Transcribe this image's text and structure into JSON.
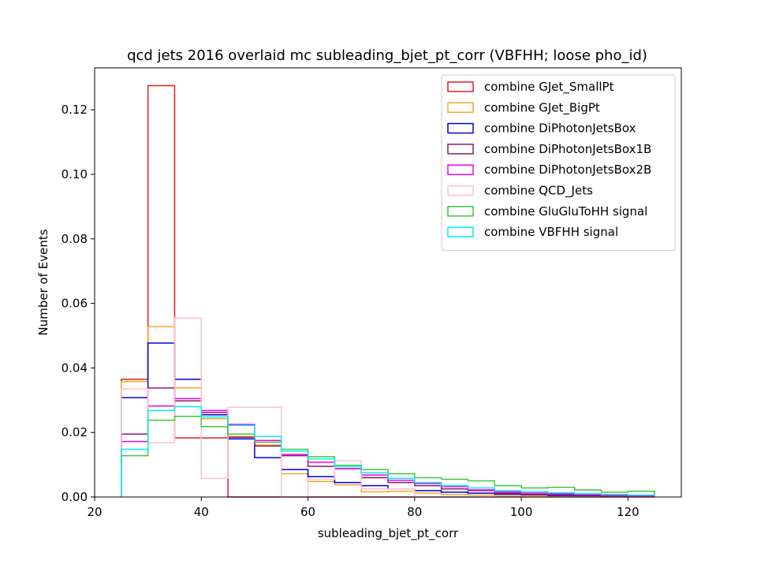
{
  "chart_data": {
    "type": "histogram-step",
    "title": "qcd jets 2016 overlaid mc subleading_bjet_pt_corr (VBFHH; loose pho_id)",
    "xlabel": "subleading_bjet_pt_corr",
    "ylabel": "Number of Events",
    "xlim": [
      20,
      130
    ],
    "ylim": [
      0,
      0.133
    ],
    "xticks": [
      "20",
      "40",
      "60",
      "80",
      "100",
      "120"
    ],
    "xtick_values": [
      20,
      40,
      60,
      80,
      100,
      120
    ],
    "yticks": [
      "0.00",
      "0.02",
      "0.04",
      "0.06",
      "0.08",
      "0.10",
      "0.12"
    ],
    "ytick_values": [
      0.0,
      0.02,
      0.04,
      0.06,
      0.08,
      0.1,
      0.12
    ],
    "grid": false,
    "legend_position": "top-right",
    "bin_edges": [
      25,
      30,
      35,
      40,
      45,
      50,
      55,
      60,
      65,
      70,
      75,
      80,
      85,
      90,
      95,
      100,
      105,
      110,
      115,
      120,
      125
    ],
    "series": [
      {
        "name": "combine GJet_SmallPt",
        "color": "#e41a1c",
        "values": [
          0.0365,
          0.1275,
          0.0183,
          0.0183,
          0.0,
          0.0,
          0.0,
          0.0,
          0.0,
          0.0,
          0.0,
          0.0,
          0.0,
          0.0,
          0.0,
          0.0,
          0.0,
          0.0,
          0.0,
          0.0
        ]
      },
      {
        "name": "combine GJet_BigPt",
        "color": "#f5a623",
        "values": [
          0.0358,
          0.0528,
          0.0338,
          0.0243,
          0.0188,
          0.0161,
          0.0072,
          0.0048,
          0.0038,
          0.0016,
          0.0018,
          0.0012,
          0.0008,
          0.0006,
          0.0004,
          0.0003,
          0.0003,
          0.0002,
          0.0002,
          0.0001
        ]
      },
      {
        "name": "combine DiPhotonJetsBox",
        "color": "#0000dd",
        "values": [
          0.0308,
          0.0477,
          0.0365,
          0.0255,
          0.018,
          0.0122,
          0.0085,
          0.0063,
          0.0045,
          0.0035,
          0.0025,
          0.002,
          0.0015,
          0.0012,
          0.0009,
          0.0007,
          0.0005,
          0.0004,
          0.0003,
          0.0002
        ]
      },
      {
        "name": "combine DiPhotonJetsBox1B",
        "color": "#8b1a6b",
        "values": [
          0.0195,
          0.0338,
          0.0298,
          0.0262,
          0.0185,
          0.0158,
          0.0128,
          0.0095,
          0.0088,
          0.006,
          0.0045,
          0.0035,
          0.0025,
          0.002,
          0.0012,
          0.0008,
          0.0007,
          0.0005,
          0.0004,
          0.0003
        ]
      },
      {
        "name": "combine DiPhotonJetsBox2B",
        "color": "#ee00ee",
        "values": [
          0.0172,
          0.0282,
          0.0305,
          0.0268,
          0.0225,
          0.0175,
          0.0132,
          0.0108,
          0.0088,
          0.0068,
          0.0052,
          0.0042,
          0.0032,
          0.0022,
          0.0016,
          0.0012,
          0.001,
          0.0008,
          0.0005,
          0.0004
        ]
      },
      {
        "name": "combine QCD_Jets",
        "color": "#ffc0cb",
        "values": [
          0.0335,
          0.0168,
          0.0555,
          0.0058,
          0.0278,
          0.0278,
          0.0,
          0.0055,
          0.0112,
          0.0025,
          0.0025,
          0.0,
          0.0,
          0.0,
          0.0,
          0.0,
          0.0,
          0.0,
          0.0,
          0.0
        ]
      },
      {
        "name": "combine GluGluToHH signal",
        "color": "#3cc83c",
        "values": [
          0.0128,
          0.0238,
          0.025,
          0.0218,
          0.0195,
          0.017,
          0.0148,
          0.0125,
          0.0098,
          0.0085,
          0.0072,
          0.006,
          0.0055,
          0.005,
          0.0035,
          0.0028,
          0.003,
          0.0022,
          0.0015,
          0.0018
        ]
      },
      {
        "name": "combine VBFHH signal",
        "color": "#00eeee",
        "values": [
          0.0148,
          0.0268,
          0.028,
          0.0248,
          0.0222,
          0.0188,
          0.0142,
          0.0118,
          0.0095,
          0.0075,
          0.0058,
          0.0045,
          0.0035,
          0.0028,
          0.002,
          0.0016,
          0.0013,
          0.001,
          0.0008,
          0.0006
        ]
      }
    ]
  }
}
